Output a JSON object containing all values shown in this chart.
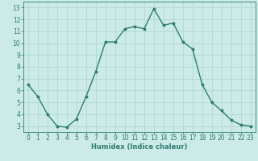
{
  "x": [
    0,
    1,
    2,
    3,
    4,
    5,
    6,
    7,
    8,
    9,
    10,
    11,
    12,
    13,
    14,
    15,
    16,
    17,
    18,
    19,
    20,
    21,
    22,
    23
  ],
  "y": [
    6.5,
    5.5,
    4.0,
    3.0,
    2.9,
    3.6,
    5.5,
    7.6,
    10.1,
    10.1,
    11.2,
    11.4,
    11.2,
    12.9,
    11.5,
    11.7,
    10.1,
    9.5,
    6.5,
    5.0,
    4.3,
    3.5,
    3.1,
    3.0
  ],
  "line_color": "#2e7d72",
  "marker": "o",
  "markersize": 1.8,
  "linewidth": 1.0,
  "xlabel": "Humidex (Indice chaleur)",
  "xlim": [
    -0.5,
    23.5
  ],
  "ylim": [
    2.5,
    13.5
  ],
  "yticks": [
    3,
    4,
    5,
    6,
    7,
    8,
    9,
    10,
    11,
    12,
    13
  ],
  "xticks": [
    0,
    1,
    2,
    3,
    4,
    5,
    6,
    7,
    8,
    9,
    10,
    11,
    12,
    13,
    14,
    15,
    16,
    17,
    18,
    19,
    20,
    21,
    22,
    23
  ],
  "bg_color": "#cceae7",
  "grid_color": "#b0d8d4",
  "axes_color": "#2e7d72",
  "tick_color": "#2e7d72",
  "label_color": "#2e7d72",
  "xlabel_fontsize": 6.0,
  "tick_fontsize": 5.5
}
